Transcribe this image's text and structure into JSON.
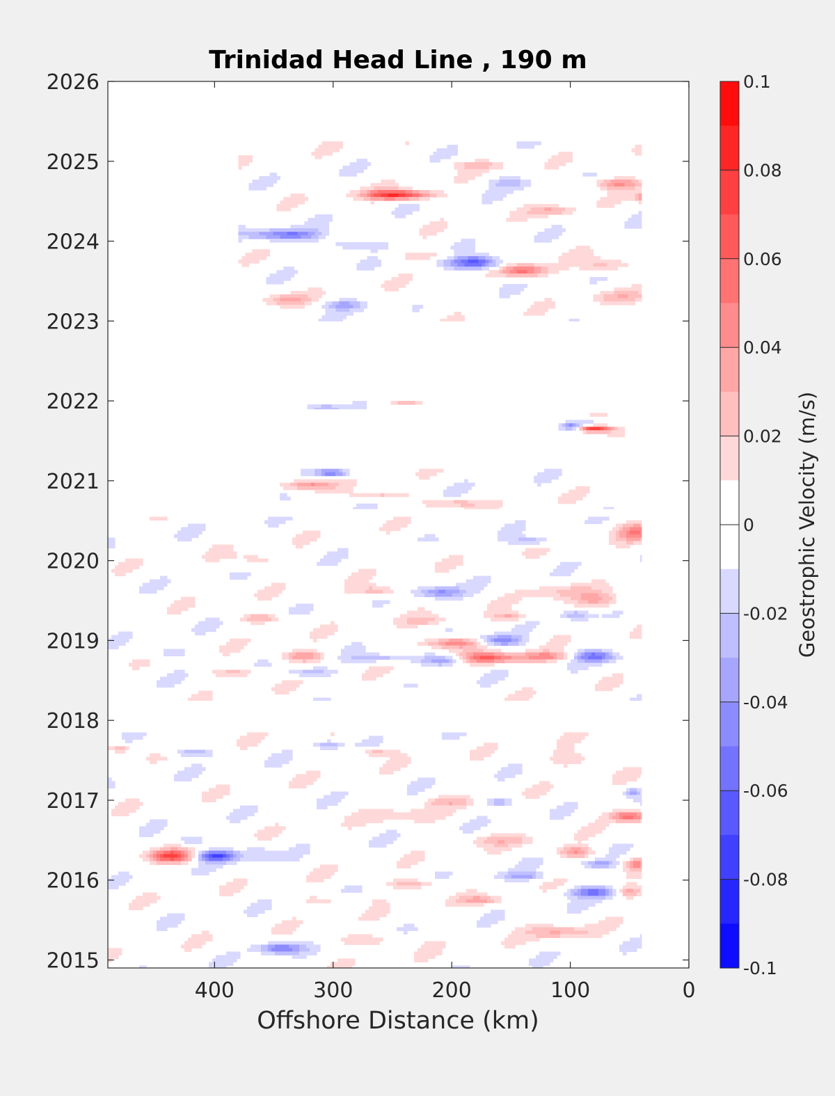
{
  "chart_data": {
    "type": "heatmap",
    "subtype": "filled-contour",
    "title": "Trinidad Head Line , 190 m",
    "xlabel": "Offshore Distance (km)",
    "ylabel": "",
    "x_reversed": true,
    "xlim": [
      490,
      0
    ],
    "ylim": [
      2014.9,
      2026.0
    ],
    "xticks": [
      400,
      300,
      200,
      100,
      0
    ],
    "yticks": [
      2015,
      2016,
      2017,
      2018,
      2019,
      2020,
      2021,
      2022,
      2023,
      2024,
      2025,
      2026
    ],
    "grid": false,
    "colorbar": {
      "label": "Geostrophic Velocity (m/s)",
      "range": [
        -0.1,
        0.1
      ],
      "ticks": [
        0.1,
        0.08,
        0.06,
        0.04,
        0.02,
        0,
        -0.02,
        -0.04,
        -0.06,
        -0.08,
        -0.1
      ],
      "tick_labels": [
        "0.1",
        "0.08",
        "0.06",
        "0.04",
        "0.02",
        "0",
        "-0.02",
        "-0.04",
        "-0.06",
        "-0.08",
        "-0.1"
      ],
      "levels": 20,
      "colormap": "blue-white-red",
      "low_color": "#0000ff",
      "mid_color": "#ffffff",
      "high_color": "#ff0000"
    },
    "data_coverage": [
      {
        "t0": 2023.0,
        "t1": 2025.25,
        "x_near": 40,
        "x_far": 380
      },
      {
        "t0": 2021.9,
        "t1": 2022.0,
        "x_near": 225,
        "x_far": 360
      },
      {
        "t0": 2021.55,
        "t1": 2021.85,
        "x_near": 40,
        "x_far": 110
      },
      {
        "t0": 2020.65,
        "t1": 2021.15,
        "x_near": 40,
        "x_far": 345
      },
      {
        "t0": 2018.25,
        "t1": 2020.55,
        "x_near": 40,
        "x_far": 490
      },
      {
        "t0": 2014.9,
        "t1": 2017.85,
        "x_near": 40,
        "x_far": 490
      }
    ],
    "features": [
      {
        "x": 245,
        "t": 2024.58,
        "v": 0.08,
        "wx": 28,
        "wt": 0.06
      },
      {
        "x": 60,
        "t": 2024.72,
        "v": 0.04,
        "wx": 22,
        "wt": 0.07
      },
      {
        "x": 35,
        "t": 2024.55,
        "v": 0.05,
        "wx": 10,
        "wt": 0.06
      },
      {
        "x": 180,
        "t": 2024.95,
        "v": 0.02,
        "wx": 25,
        "wt": 0.05
      },
      {
        "x": 150,
        "t": 2024.73,
        "v": -0.02,
        "wx": 20,
        "wt": 0.07
      },
      {
        "x": 115,
        "t": 2024.38,
        "v": 0.03,
        "wx": 18,
        "wt": 0.06
      },
      {
        "x": 340,
        "t": 2024.08,
        "v": -0.05,
        "wx": 30,
        "wt": 0.07
      },
      {
        "x": 285,
        "t": 2023.95,
        "v": -0.03,
        "wx": 25,
        "wt": 0.06
      },
      {
        "x": 180,
        "t": 2023.73,
        "v": -0.07,
        "wx": 22,
        "wt": 0.09
      },
      {
        "x": 140,
        "t": 2023.63,
        "v": 0.06,
        "wx": 20,
        "wt": 0.08
      },
      {
        "x": 70,
        "t": 2023.7,
        "v": 0.03,
        "wx": 22,
        "wt": 0.09
      },
      {
        "x": 220,
        "t": 2023.82,
        "v": 0.02,
        "wx": 30,
        "wt": 0.06
      },
      {
        "x": 340,
        "t": 2023.27,
        "v": 0.03,
        "wx": 18,
        "wt": 0.07
      },
      {
        "x": 290,
        "t": 2023.2,
        "v": -0.03,
        "wx": 18,
        "wt": 0.06
      },
      {
        "x": 215,
        "t": 2023.3,
        "v": 0.02,
        "wx": 22,
        "wt": 0.08
      },
      {
        "x": 60,
        "t": 2023.3,
        "v": 0.02,
        "wx": 25,
        "wt": 0.08
      },
      {
        "x": 235,
        "t": 2021.97,
        "v": 0.03,
        "wx": 18,
        "wt": 0.03
      },
      {
        "x": 310,
        "t": 2021.92,
        "v": -0.03,
        "wx": 16,
        "wt": 0.03
      },
      {
        "x": 80,
        "t": 2021.65,
        "v": 0.08,
        "wx": 15,
        "wt": 0.04
      },
      {
        "x": 100,
        "t": 2021.68,
        "v": -0.04,
        "wx": 8,
        "wt": 0.04
      },
      {
        "x": 78,
        "t": 2021.85,
        "v": 0.03,
        "wx": 13,
        "wt": 0.05
      },
      {
        "x": 300,
        "t": 2021.1,
        "v": -0.05,
        "wx": 14,
        "wt": 0.05
      },
      {
        "x": 320,
        "t": 2020.95,
        "v": 0.04,
        "wx": 20,
        "wt": 0.06
      },
      {
        "x": 260,
        "t": 2020.82,
        "v": 0.03,
        "wx": 22,
        "wt": 0.06
      },
      {
        "x": 390,
        "t": 2020.82,
        "v": 0.03,
        "wx": 14,
        "wt": 0.06
      },
      {
        "x": 355,
        "t": 2020.8,
        "v": -0.03,
        "wx": 18,
        "wt": 0.06
      },
      {
        "x": 200,
        "t": 2020.72,
        "v": 0.03,
        "wx": 25,
        "wt": 0.05
      },
      {
        "x": 45,
        "t": 2020.35,
        "v": 0.04,
        "wx": 15,
        "wt": 0.12
      },
      {
        "x": 130,
        "t": 2020.25,
        "v": -0.03,
        "wx": 18,
        "wt": 0.05
      },
      {
        "x": 230,
        "t": 2020.15,
        "v": 0.02,
        "wx": 18,
        "wt": 0.06
      },
      {
        "x": 365,
        "t": 2020.0,
        "v": 0.02,
        "wx": 20,
        "wt": 0.1
      },
      {
        "x": 210,
        "t": 2019.6,
        "v": -0.04,
        "wx": 20,
        "wt": 0.07
      },
      {
        "x": 260,
        "t": 2019.62,
        "v": 0.03,
        "wx": 20,
        "wt": 0.07
      },
      {
        "x": 110,
        "t": 2019.62,
        "v": 0.02,
        "wx": 25,
        "wt": 0.1
      },
      {
        "x": 75,
        "t": 2019.5,
        "v": 0.03,
        "wx": 20,
        "wt": 0.1
      },
      {
        "x": 360,
        "t": 2019.28,
        "v": 0.03,
        "wx": 20,
        "wt": 0.06
      },
      {
        "x": 220,
        "t": 2019.25,
        "v": 0.02,
        "wx": 20,
        "wt": 0.06
      },
      {
        "x": 150,
        "t": 2019.3,
        "v": 0.03,
        "wx": 15,
        "wt": 0.06
      },
      {
        "x": 95,
        "t": 2019.32,
        "v": -0.03,
        "wx": 12,
        "wt": 0.06
      },
      {
        "x": 200,
        "t": 2018.97,
        "v": 0.05,
        "wx": 28,
        "wt": 0.07
      },
      {
        "x": 160,
        "t": 2019.0,
        "v": -0.05,
        "wx": 20,
        "wt": 0.07
      },
      {
        "x": 170,
        "t": 2018.78,
        "v": 0.06,
        "wx": 28,
        "wt": 0.07
      },
      {
        "x": 120,
        "t": 2018.8,
        "v": 0.04,
        "wx": 22,
        "wt": 0.06
      },
      {
        "x": 205,
        "t": 2018.75,
        "v": -0.05,
        "wx": 20,
        "wt": 0.07
      },
      {
        "x": 260,
        "t": 2018.78,
        "v": -0.03,
        "wx": 25,
        "wt": 0.05
      },
      {
        "x": 325,
        "t": 2018.8,
        "v": 0.04,
        "wx": 20,
        "wt": 0.07
      },
      {
        "x": 80,
        "t": 2018.8,
        "v": -0.05,
        "wx": 18,
        "wt": 0.07
      },
      {
        "x": 380,
        "t": 2018.6,
        "v": 0.03,
        "wx": 20,
        "wt": 0.06
      },
      {
        "x": 320,
        "t": 2018.6,
        "v": -0.03,
        "wx": 20,
        "wt": 0.06
      },
      {
        "x": 440,
        "t": 2018.85,
        "v": -0.02,
        "wx": 20,
        "wt": 0.08
      },
      {
        "x": 245,
        "t": 2018.32,
        "v": 0.02,
        "wx": 18,
        "wt": 0.06
      },
      {
        "x": 435,
        "t": 2016.3,
        "v": 0.07,
        "wx": 20,
        "wt": 0.08
      },
      {
        "x": 400,
        "t": 2016.3,
        "v": -0.07,
        "wx": 18,
        "wt": 0.07
      },
      {
        "x": 420,
        "t": 2016.5,
        "v": -0.03,
        "wx": 15,
        "wt": 0.06
      },
      {
        "x": 365,
        "t": 2016.35,
        "v": -0.02,
        "wx": 15,
        "wt": 0.1
      },
      {
        "x": 50,
        "t": 2016.8,
        "v": 0.06,
        "wx": 15,
        "wt": 0.07
      },
      {
        "x": 95,
        "t": 2016.35,
        "v": 0.04,
        "wx": 15,
        "wt": 0.07
      },
      {
        "x": 75,
        "t": 2016.2,
        "v": -0.03,
        "wx": 15,
        "wt": 0.05
      },
      {
        "x": 45,
        "t": 2016.2,
        "v": 0.04,
        "wx": 10,
        "wt": 0.07
      },
      {
        "x": 80,
        "t": 2015.85,
        "v": -0.05,
        "wx": 22,
        "wt": 0.07
      },
      {
        "x": 50,
        "t": 2015.85,
        "v": 0.04,
        "wx": 12,
        "wt": 0.07
      },
      {
        "x": 140,
        "t": 2016.05,
        "v": -0.03,
        "wx": 20,
        "wt": 0.05
      },
      {
        "x": 230,
        "t": 2015.95,
        "v": 0.03,
        "wx": 25,
        "wt": 0.06
      },
      {
        "x": 175,
        "t": 2015.75,
        "v": 0.03,
        "wx": 20,
        "wt": 0.05
      },
      {
        "x": 345,
        "t": 2015.15,
        "v": -0.05,
        "wx": 18,
        "wt": 0.07
      },
      {
        "x": 270,
        "t": 2015.25,
        "v": 0.02,
        "wx": 40,
        "wt": 0.08
      },
      {
        "x": 110,
        "t": 2015.35,
        "v": 0.03,
        "wx": 25,
        "wt": 0.08
      },
      {
        "x": 160,
        "t": 2016.98,
        "v": -0.03,
        "wx": 15,
        "wt": 0.05
      },
      {
        "x": 200,
        "t": 2016.98,
        "v": 0.02,
        "wx": 25,
        "wt": 0.06
      },
      {
        "x": 240,
        "t": 2016.8,
        "v": 0.02,
        "wx": 30,
        "wt": 0.08
      },
      {
        "x": 305,
        "t": 2017.7,
        "v": -0.03,
        "wx": 12,
        "wt": 0.05
      },
      {
        "x": 265,
        "t": 2017.6,
        "v": 0.03,
        "wx": 15,
        "wt": 0.05
      },
      {
        "x": 420,
        "t": 2017.6,
        "v": -0.03,
        "wx": 18,
        "wt": 0.05
      },
      {
        "x": 480,
        "t": 2017.65,
        "v": 0.03,
        "wx": 10,
        "wt": 0.05
      },
      {
        "x": 90,
        "t": 2017.5,
        "v": 0.02,
        "wx": 30,
        "wt": 0.12
      },
      {
        "x": 48,
        "t": 2017.1,
        "v": -0.03,
        "wx": 8,
        "wt": 0.06
      },
      {
        "x": 160,
        "t": 2016.5,
        "v": 0.02,
        "wx": 30,
        "wt": 0.07
      },
      {
        "x": 300,
        "t": 2015.75,
        "v": 0.02,
        "wx": 30,
        "wt": 0.06
      }
    ]
  }
}
